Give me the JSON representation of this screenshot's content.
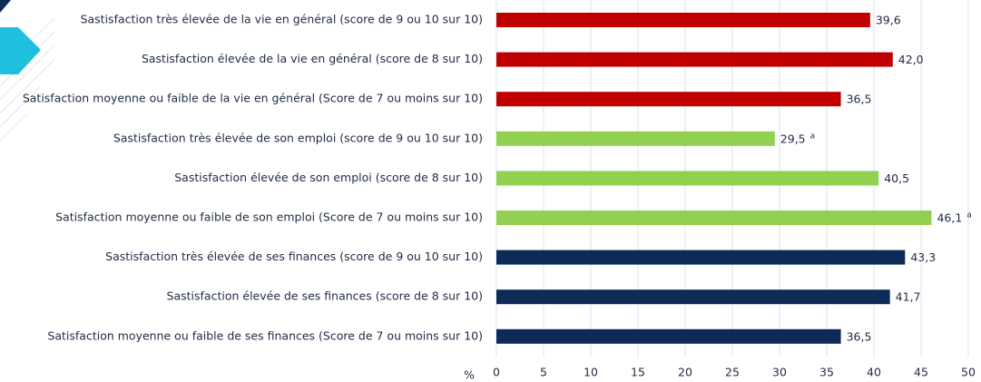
{
  "chart_data": {
    "type": "bar",
    "orientation": "horizontal",
    "categories": [
      "Sastisfaction très élevée de la vie en général (score de 9 ou 10 sur 10)",
      "Sastisfaction élevée de la vie en général (score de 8 sur 10)",
      "Satisfaction moyenne ou faible de la vie en général (Score de 7 ou moins sur 10)",
      "Sastisfaction très élevée de son emploi (score de 9 ou 10 sur 10)",
      "Sastisfaction élevée de son emploi (score de 8 sur 10)",
      "Satisfaction moyenne ou faible de son emploi (Score de 7 ou moins sur 10)",
      "Sastisfaction très élevée de ses finances (score de 9 ou 10 sur 10)",
      "Sastisfaction élevée de ses finances (score de 8 sur 10)",
      "Satisfaction moyenne ou faible de ses finances (Score de 7 ou moins sur 10)"
    ],
    "values": [
      39.6,
      42.0,
      36.5,
      29.5,
      40.5,
      46.1,
      43.3,
      41.7,
      36.5
    ],
    "value_labels": [
      "39,6",
      "42,0",
      "36,5",
      "29,5",
      "40,5",
      "46,1",
      "43,3",
      "41,7",
      "36,5"
    ],
    "superscripts": [
      null,
      null,
      null,
      "a",
      null,
      "a",
      null,
      null,
      null
    ],
    "colors": [
      "#c00000",
      "#c00000",
      "#c00000",
      "#92d050",
      "#92d050",
      "#92d050",
      "#0e2b58",
      "#0e2b58",
      "#0e2b58"
    ],
    "xlabel": "%",
    "xlim": [
      0,
      50
    ],
    "xticks": [
      0,
      5,
      10,
      15,
      20,
      25,
      30,
      35,
      40,
      45,
      50
    ],
    "grid": true
  }
}
